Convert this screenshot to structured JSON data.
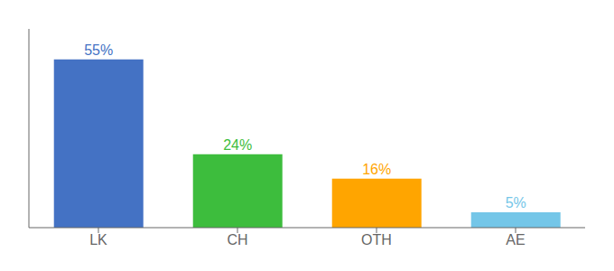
{
  "chart_data": {
    "type": "bar",
    "categories": [
      "LK",
      "CH",
      "OTH",
      "AE"
    ],
    "values": [
      55,
      24,
      16,
      5
    ],
    "value_labels": [
      "55%",
      "24%",
      "16%",
      "5%"
    ],
    "data_labels": true,
    "colors": [
      "#4472C4",
      "#3DBD3D",
      "#FFA500",
      "#74C6E8"
    ],
    "ylim": [
      0,
      65
    ],
    "tick_labels": "x",
    "grid": false
  }
}
